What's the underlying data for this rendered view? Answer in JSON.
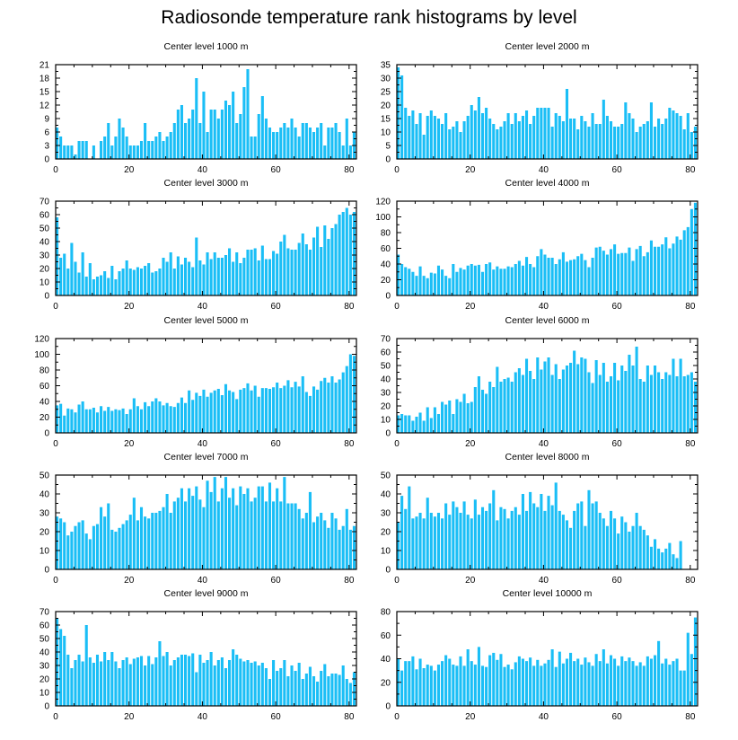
{
  "title": "Radiosonde temperature rank histograms by level",
  "colors": {
    "bar": "#1ABEF6",
    "axis": "#000000",
    "background": "#ffffff"
  },
  "chart_data": [
    {
      "type": "bar",
      "title": "Center level 1000 m",
      "xlim": [
        0,
        82
      ],
      "ylim": [
        0,
        21
      ],
      "xticks": [
        0,
        20,
        40,
        60,
        80
      ],
      "yticks": [
        0,
        3,
        6,
        9,
        12,
        15,
        18,
        21
      ],
      "values": [
        7,
        5,
        3,
        3,
        3,
        1,
        4,
        4,
        4,
        0,
        3,
        0,
        4,
        5,
        8,
        3,
        5,
        9,
        7,
        5,
        3,
        3,
        3,
        4,
        8,
        4,
        4,
        5,
        6,
        4,
        5,
        6,
        8,
        11,
        12,
        8,
        9,
        11,
        18,
        8,
        15,
        6,
        11,
        11,
        9,
        11,
        13,
        12,
        15,
        8,
        10,
        16,
        20,
        5,
        5,
        10,
        14,
        9,
        7,
        6,
        6,
        7,
        8,
        7,
        9,
        7,
        5,
        8,
        8,
        7,
        6,
        7,
        8,
        3,
        7,
        7,
        8,
        6,
        3,
        9,
        3,
        6
      ]
    },
    {
      "type": "bar",
      "title": "Center level 2000 m",
      "xlim": [
        0,
        82
      ],
      "ylim": [
        0,
        35
      ],
      "xticks": [
        0,
        20,
        40,
        60,
        80
      ],
      "yticks": [
        0,
        5,
        10,
        15,
        20,
        25,
        30,
        35
      ],
      "values": [
        34,
        31,
        19,
        16,
        18,
        13,
        17,
        9,
        16,
        18,
        16,
        15,
        13,
        17,
        11,
        12,
        14,
        10,
        14,
        16,
        20,
        18,
        23,
        17,
        19,
        15,
        13,
        11,
        12,
        14,
        17,
        13,
        17,
        14,
        16,
        18,
        13,
        16,
        19,
        19,
        19,
        19,
        12,
        17,
        16,
        14,
        26,
        15,
        15,
        11,
        16,
        14,
        12,
        17,
        13,
        13,
        22,
        16,
        14,
        12,
        12,
        13,
        21,
        17,
        15,
        10,
        12,
        13,
        14,
        21,
        12,
        15,
        13,
        15,
        19,
        18,
        17,
        16,
        11,
        17,
        10,
        12
      ]
    },
    {
      "type": "bar",
      "title": "Center level 3000 m",
      "xlim": [
        0,
        82
      ],
      "ylim": [
        0,
        70
      ],
      "xticks": [
        0,
        20,
        40,
        60,
        80
      ],
      "yticks": [
        0,
        10,
        20,
        30,
        40,
        50,
        60,
        70
      ],
      "values": [
        58,
        28,
        31,
        20,
        39,
        25,
        17,
        32,
        14,
        24,
        12,
        14,
        15,
        18,
        13,
        22,
        12,
        18,
        20,
        26,
        20,
        19,
        21,
        20,
        22,
        24,
        17,
        18,
        20,
        28,
        25,
        32,
        20,
        29,
        23,
        28,
        25,
        21,
        43,
        26,
        23,
        32,
        27,
        32,
        28,
        28,
        30,
        35,
        25,
        32,
        24,
        28,
        34,
        34,
        35,
        26,
        37,
        27,
        27,
        33,
        31,
        40,
        45,
        35,
        34,
        34,
        39,
        46,
        38,
        34,
        43,
        51,
        36,
        52,
        42,
        50,
        53,
        60,
        62,
        65,
        60,
        62
      ]
    },
    {
      "type": "bar",
      "title": "Center level 4000 m",
      "xlim": [
        0,
        82
      ],
      "ylim": [
        0,
        120
      ],
      "xticks": [
        0,
        20,
        40,
        60,
        80
      ],
      "yticks": [
        0,
        20,
        40,
        60,
        80,
        100,
        120
      ],
      "values": [
        52,
        40,
        36,
        34,
        30,
        25,
        37,
        25,
        22,
        29,
        28,
        38,
        33,
        25,
        22,
        40,
        30,
        35,
        33,
        38,
        40,
        38,
        39,
        30,
        40,
        42,
        33,
        37,
        34,
        34,
        37,
        36,
        40,
        44,
        38,
        49,
        40,
        36,
        50,
        59,
        52,
        48,
        48,
        40,
        46,
        55,
        43,
        45,
        46,
        50,
        53,
        45,
        36,
        48,
        61,
        62,
        57,
        52,
        59,
        65,
        53,
        54,
        54,
        61,
        44,
        59,
        63,
        50,
        55,
        70,
        62,
        62,
        65,
        74,
        60,
        66,
        75,
        71,
        83,
        87,
        110,
        118
      ]
    },
    {
      "type": "bar",
      "title": "Center level 5000 m",
      "xlim": [
        0,
        82
      ],
      "ylim": [
        0,
        120
      ],
      "xticks": [
        0,
        20,
        40,
        60,
        80
      ],
      "yticks": [
        0,
        20,
        40,
        60,
        80,
        100,
        120
      ],
      "values": [
        35,
        37,
        22,
        31,
        30,
        26,
        36,
        40,
        30,
        30,
        32,
        26,
        34,
        28,
        33,
        28,
        30,
        29,
        31,
        24,
        30,
        44,
        34,
        30,
        39,
        34,
        40,
        44,
        40,
        35,
        38,
        34,
        33,
        38,
        45,
        38,
        54,
        42,
        51,
        47,
        55,
        46,
        51,
        54,
        56,
        48,
        62,
        54,
        52,
        43,
        55,
        57,
        63,
        54,
        60,
        46,
        57,
        57,
        56,
        58,
        64,
        57,
        60,
        67,
        58,
        65,
        59,
        72,
        52,
        47,
        59,
        55,
        66,
        70,
        64,
        72,
        64,
        68,
        77,
        85,
        100,
        98
      ]
    },
    {
      "type": "bar",
      "title": "Center level 6000 m",
      "xlim": [
        0,
        82
      ],
      "ylim": [
        0,
        70
      ],
      "xticks": [
        0,
        20,
        40,
        60,
        80
      ],
      "yticks": [
        0,
        10,
        20,
        30,
        40,
        50,
        60,
        70
      ],
      "values": [
        13,
        14,
        13,
        13,
        9,
        12,
        15,
        9,
        19,
        11,
        19,
        14,
        23,
        21,
        24,
        14,
        25,
        23,
        29,
        22,
        23,
        34,
        42,
        32,
        29,
        38,
        34,
        49,
        38,
        40,
        41,
        38,
        45,
        48,
        43,
        55,
        46,
        40,
        56,
        47,
        53,
        56,
        43,
        51,
        40,
        47,
        50,
        52,
        61,
        51,
        56,
        55,
        45,
        37,
        54,
        43,
        52,
        38,
        42,
        52,
        39,
        50,
        46,
        58,
        50,
        64,
        40,
        38,
        50,
        43,
        50,
        45,
        40,
        45,
        43,
        55,
        42,
        55,
        42,
        43,
        45,
        38
      ]
    },
    {
      "type": "bar",
      "title": "Center level 7000 m",
      "xlim": [
        0,
        82
      ],
      "ylim": [
        0,
        50
      ],
      "xticks": [
        0,
        20,
        40,
        60,
        80
      ],
      "yticks": [
        0,
        10,
        20,
        30,
        40,
        50
      ],
      "values": [
        28,
        27,
        25,
        18,
        20,
        23,
        25,
        26,
        19,
        16,
        23,
        24,
        33,
        28,
        35,
        21,
        20,
        22,
        24,
        26,
        29,
        38,
        26,
        33,
        28,
        27,
        30,
        30,
        31,
        33,
        40,
        30,
        36,
        38,
        43,
        36,
        43,
        39,
        44,
        37,
        33,
        47,
        41,
        49,
        36,
        43,
        49,
        38,
        43,
        34,
        44,
        40,
        43,
        36,
        38,
        44,
        44,
        36,
        46,
        36,
        43,
        36,
        49,
        35,
        35,
        35,
        32,
        27,
        30,
        41,
        25,
        28,
        30,
        26,
        22,
        30,
        27,
        21,
        23,
        32,
        21,
        23
      ]
    },
    {
      "type": "bar",
      "title": "Center level 8000 m",
      "xlim": [
        0,
        82
      ],
      "ylim": [
        0,
        50
      ],
      "xticks": [
        0,
        20,
        40,
        60,
        80
      ],
      "yticks": [
        0,
        10,
        20,
        30,
        40,
        50
      ],
      "values": [
        25,
        39,
        32,
        44,
        27,
        28,
        30,
        27,
        38,
        30,
        28,
        30,
        27,
        35,
        29,
        36,
        33,
        30,
        36,
        29,
        27,
        37,
        29,
        33,
        31,
        35,
        42,
        26,
        33,
        32,
        27,
        31,
        33,
        29,
        40,
        31,
        41,
        35,
        33,
        40,
        31,
        39,
        34,
        46,
        31,
        29,
        26,
        22,
        31,
        35,
        36,
        23,
        42,
        35,
        36,
        30,
        27,
        23,
        31,
        27,
        19,
        28,
        25,
        20,
        23,
        30,
        23,
        21,
        18,
        12,
        16,
        11,
        9,
        11,
        14,
        8,
        6,
        15
      ]
    },
    {
      "type": "bar",
      "title": "Center level 9000 m",
      "xlim": [
        0,
        82
      ],
      "ylim": [
        0,
        70
      ],
      "xticks": [
        0,
        20,
        40,
        60,
        80
      ],
      "yticks": [
        0,
        10,
        20,
        30,
        40,
        50,
        60,
        70
      ],
      "values": [
        65,
        57,
        52,
        38,
        28,
        34,
        38,
        33,
        60,
        36,
        32,
        38,
        33,
        40,
        34,
        40,
        33,
        28,
        34,
        36,
        31,
        35,
        36,
        37,
        30,
        37,
        31,
        36,
        48,
        37,
        40,
        30,
        34,
        36,
        38,
        38,
        37,
        39,
        25,
        38,
        32,
        34,
        40,
        30,
        34,
        36,
        28,
        34,
        42,
        38,
        35,
        33,
        34,
        32,
        33,
        30,
        32,
        28,
        20,
        34,
        26,
        28,
        34,
        22,
        30,
        26,
        32,
        20,
        24,
        29,
        22,
        18,
        26,
        31,
        22,
        24,
        24,
        23,
        30,
        20,
        17,
        25
      ]
    },
    {
      "type": "bar",
      "title": "Center level 10000 m",
      "xlim": [
        0,
        82
      ],
      "ylim": [
        0,
        80
      ],
      "xticks": [
        0,
        20,
        40,
        60,
        80
      ],
      "yticks": [
        0,
        20,
        40,
        60,
        80
      ],
      "values": [
        40,
        30,
        38,
        38,
        42,
        31,
        40,
        32,
        35,
        34,
        30,
        35,
        38,
        43,
        40,
        35,
        34,
        42,
        34,
        48,
        38,
        35,
        50,
        34,
        33,
        43,
        45,
        39,
        44,
        33,
        35,
        31,
        37,
        42,
        40,
        38,
        41,
        34,
        39,
        34,
        36,
        39,
        48,
        33,
        46,
        36,
        40,
        45,
        38,
        40,
        35,
        41,
        37,
        34,
        44,
        38,
        48,
        36,
        43,
        40,
        34,
        42,
        38,
        41,
        38,
        34,
        37,
        34,
        42,
        40,
        43,
        55,
        36,
        40,
        35,
        38,
        40,
        30,
        30,
        62,
        44,
        75
      ]
    }
  ]
}
